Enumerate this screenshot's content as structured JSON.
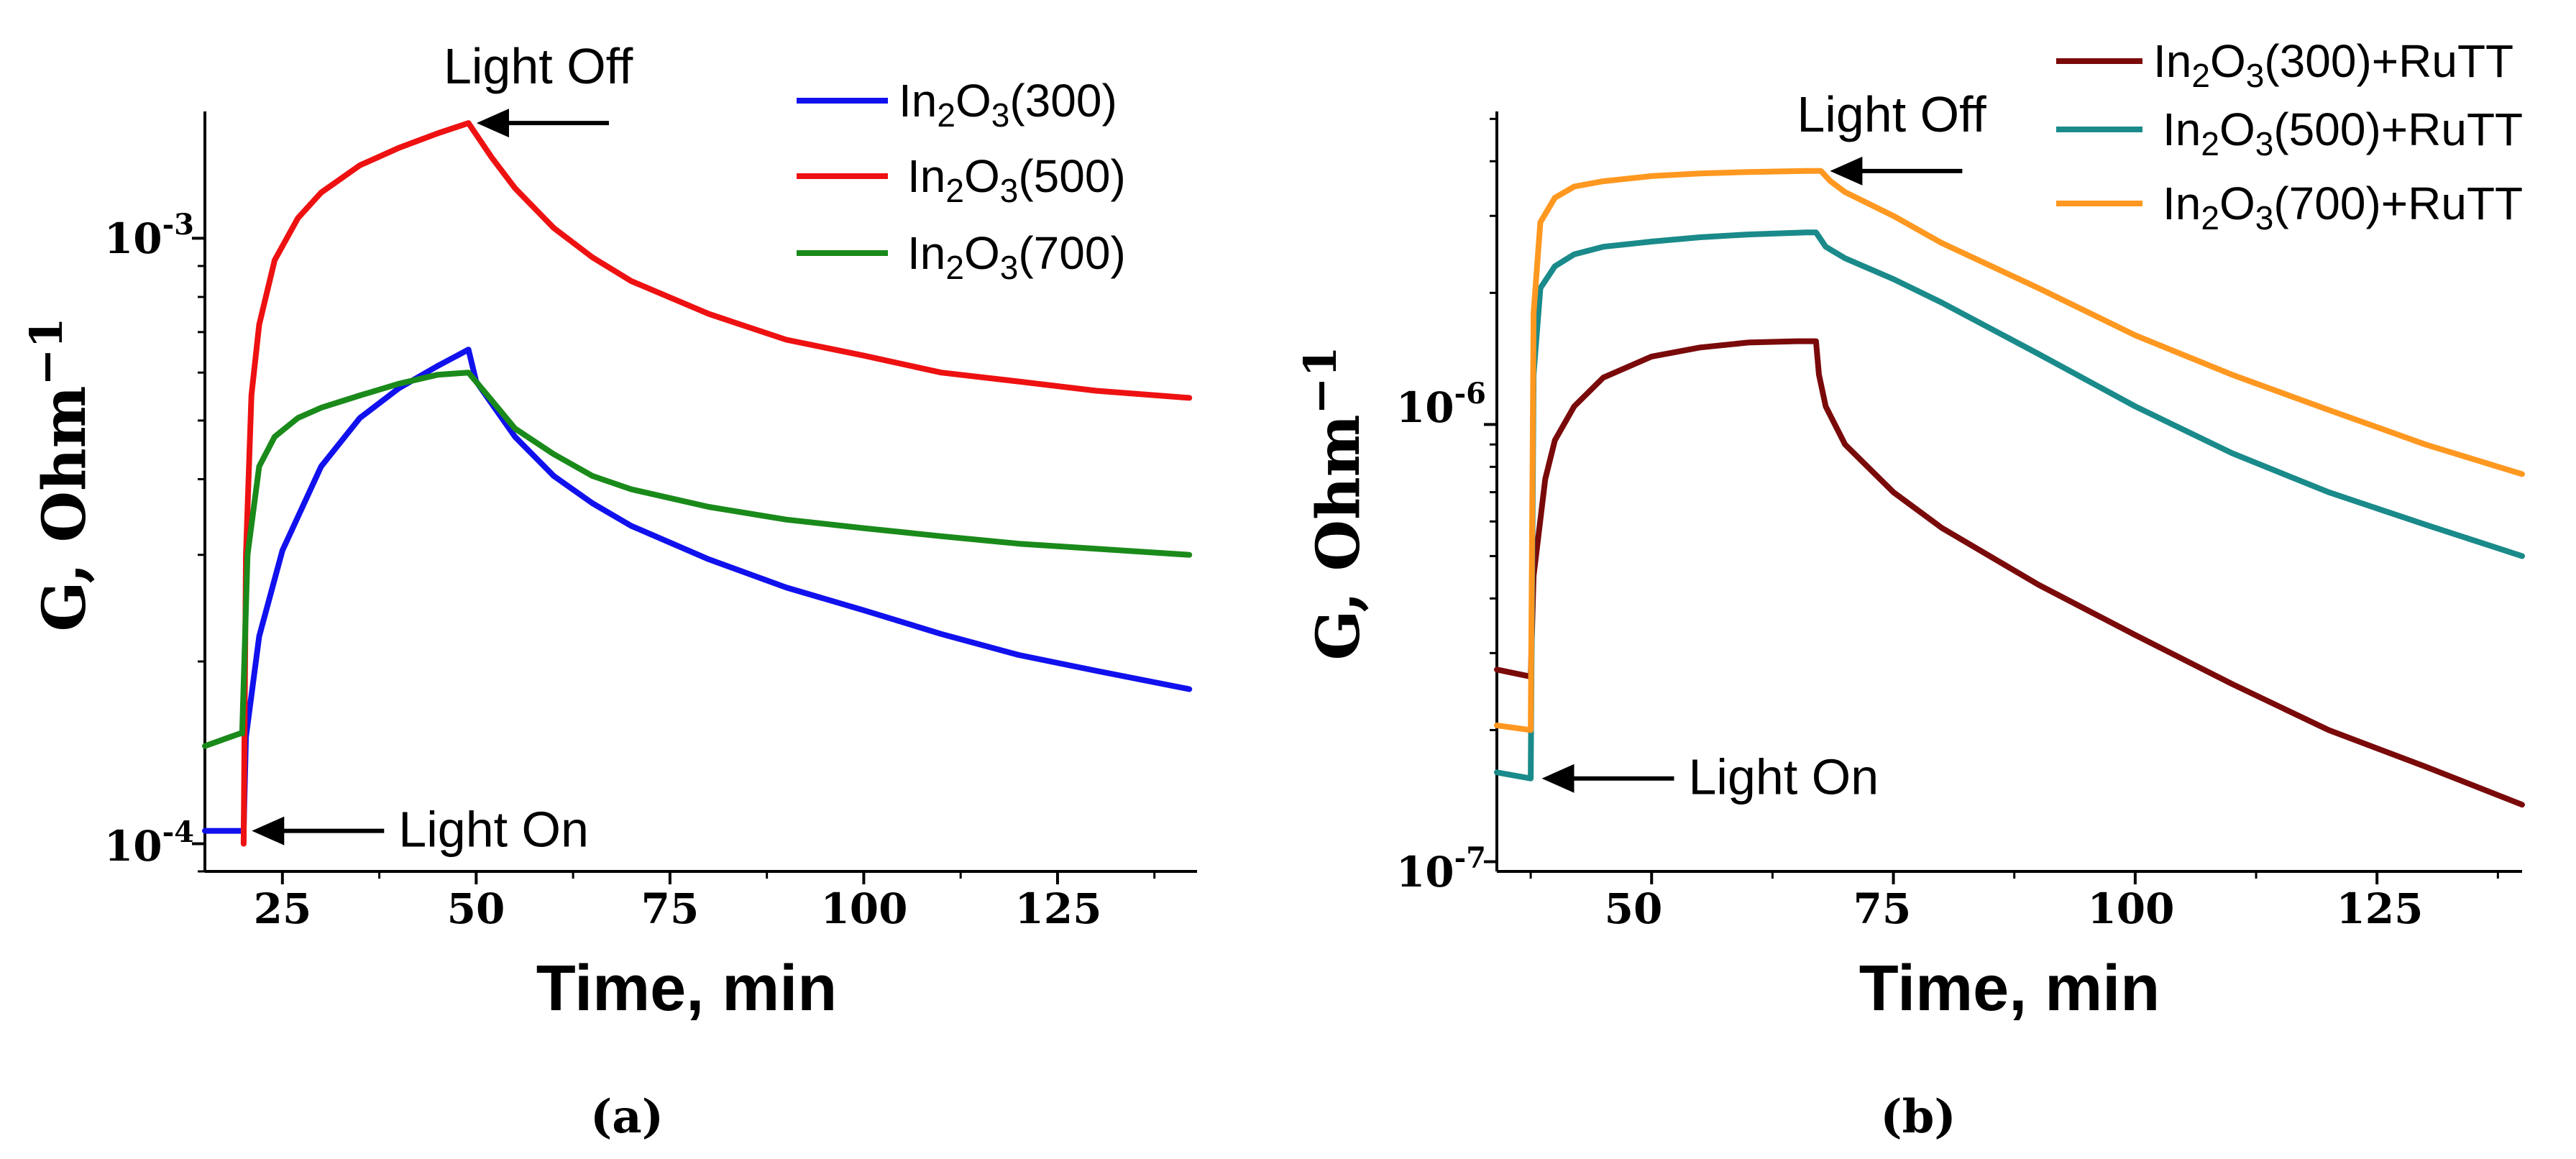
{
  "chart_data": [
    {
      "type": "line",
      "panel": "(a)",
      "xlabel": "Time, min",
      "ylabel": "G, Ohm",
      "ylabel_exp": "−1",
      "yscale": "log",
      "xlim": [
        15,
        143
      ],
      "ylim": [
        9e-05,
        0.00162
      ],
      "xticks": [
        {
          "value": 25,
          "label": "25"
        },
        {
          "value": 50,
          "label": "50"
        },
        {
          "value": 75,
          "label": "75"
        },
        {
          "value": 100,
          "label": "100"
        },
        {
          "value": 125,
          "label": "125"
        }
      ],
      "yticks": [
        {
          "value": 0.0001,
          "base": "10",
          "exp": "-4"
        },
        {
          "value": 0.001,
          "base": "10",
          "exp": "-3"
        }
      ],
      "legend": {
        "position": "top-right"
      },
      "series": [
        {
          "name": "In2O3(300)",
          "label_parts": {
            "a": "In",
            "s1": "2",
            "b": "O",
            "s2": "3",
            "c": "(300)"
          },
          "color": "#1111ee",
          "x": [
            15,
            20,
            20.3,
            22,
            25,
            30,
            35,
            40,
            45,
            49,
            50,
            55,
            60,
            65,
            70,
            80,
            90,
            100,
            110,
            120,
            130,
            142
          ],
          "y": [
            0.000105,
            0.000105,
            0.00015,
            0.00022,
            0.000305,
            0.00042,
            0.000505,
            0.000565,
            0.000615,
            0.000655,
            0.00058,
            0.00047,
            0.000405,
            0.000365,
            0.000335,
            0.000295,
            0.000265,
            0.000243,
            0.000222,
            0.000205,
            0.000193,
            0.00018
          ]
        },
        {
          "name": "In2O3(500)",
          "label_parts": {
            "a": "In",
            "s1": "2",
            "b": "O",
            "s2": "3",
            "c": "(500)"
          },
          "color": "#ee1111",
          "x": [
            20,
            20.3,
            21,
            22,
            24,
            27,
            30,
            35,
            40,
            45,
            49,
            52,
            55,
            60,
            65,
            70,
            80,
            90,
            100,
            110,
            120,
            130,
            142
          ],
          "y": [
            0.0001,
            0.0003,
            0.00055,
            0.00072,
            0.00092,
            0.00108,
            0.00119,
            0.00132,
            0.00141,
            0.00149,
            0.00155,
            0.00136,
            0.00121,
            0.00104,
            0.00093,
            0.00085,
            0.00075,
            0.00068,
            0.00064,
            0.0006,
            0.00058,
            0.00056,
            0.000545
          ]
        },
        {
          "name": "In2O3(700)",
          "label_parts": {
            "a": "In",
            "s1": "2",
            "b": "O",
            "s2": "3",
            "c": "(700)"
          },
          "color": "#1a8a1a",
          "x": [
            15,
            19.5,
            19.8,
            20.5,
            22,
            24,
            27,
            30,
            35,
            40,
            45,
            49,
            52,
            55,
            60,
            65,
            70,
            80,
            90,
            100,
            110,
            120,
            130,
            142
          ],
          "y": [
            0.000145,
            0.000152,
            0.000152,
            0.0003,
            0.00042,
            0.00047,
            0.000505,
            0.000525,
            0.00055,
            0.000575,
            0.000595,
            0.0006,
            0.00054,
            0.000485,
            0.00044,
            0.000405,
            0.000385,
            0.00036,
            0.000343,
            0.000332,
            0.000322,
            0.000313,
            0.000307,
            0.0003
          ]
        }
      ],
      "annotations": [
        {
          "text": "Light Off",
          "x": 49.5,
          "y": 0.00155,
          "side": "right",
          "text_above": true
        },
        {
          "text": "Light On",
          "x": 20.5,
          "y": 0.000105,
          "side": "right",
          "text_above": false
        }
      ]
    },
    {
      "type": "line",
      "panel": "(b)",
      "xlabel": "Time, min",
      "ylabel": "G, Ohm",
      "ylabel_exp": "−1",
      "yscale": "log",
      "xlim": [
        34,
        140
      ],
      "ylim": [
        9.5e-08,
        5.2e-06
      ],
      "xticks": [
        {
          "value": 50,
          "label": "50"
        },
        {
          "value": 75,
          "label": "75"
        },
        {
          "value": 100,
          "label": "100"
        },
        {
          "value": 125,
          "label": "125"
        }
      ],
      "yticks": [
        {
          "value": 1e-07,
          "base": "10",
          "exp": "-7"
        },
        {
          "value": 1e-06,
          "base": "10",
          "exp": "-6"
        }
      ],
      "legend": {
        "position": "top-right"
      },
      "series": [
        {
          "name": "In2O3(300)+RuTT",
          "label_parts": {
            "a": "In",
            "s1": "2",
            "b": "O",
            "s2": "3",
            "c": "(300)+RuTT"
          },
          "color": "#7a0a0a",
          "x": [
            34,
            37.5,
            37.8,
            39,
            40,
            42,
            45,
            50,
            55,
            60,
            65,
            67,
            67.3,
            68,
            70,
            75,
            80,
            90,
            100,
            110,
            120,
            130,
            140
          ],
          "y": [
            2.75e-07,
            2.65e-07,
            4.5e-07,
            7.5e-07,
            9.2e-07,
            1.1e-06,
            1.28e-06,
            1.43e-06,
            1.5e-06,
            1.54e-06,
            1.55e-06,
            1.55e-06,
            1.3e-06,
            1.1e-06,
            9e-07,
            7e-07,
            5.8e-07,
            4.3e-07,
            3.3e-07,
            2.55e-07,
            2e-07,
            1.65e-07,
            1.35e-07
          ]
        },
        {
          "name": "In2O3(500)+RuTT",
          "label_parts": {
            "a": "In",
            "s1": "2",
            "b": "O",
            "s2": "3",
            "c": "(500)+RuTT"
          },
          "color": "#1a8a8a",
          "x": [
            34,
            37.5,
            37.8,
            38.5,
            40,
            42,
            45,
            50,
            55,
            60,
            66,
            67,
            68,
            70,
            75,
            80,
            90,
            100,
            110,
            120,
            130,
            140
          ],
          "y": [
            1.6e-07,
            1.55e-07,
            1.3e-06,
            2.05e-06,
            2.3e-06,
            2.45e-06,
            2.55e-06,
            2.62e-06,
            2.68e-06,
            2.72e-06,
            2.75e-06,
            2.75e-06,
            2.55e-06,
            2.4e-06,
            2.15e-06,
            1.9e-06,
            1.45e-06,
            1.1e-06,
            8.6e-07,
            7e-07,
            5.9e-07,
            5e-07
          ]
        },
        {
          "name": "In2O3(700)+RuTT",
          "label_parts": {
            "a": "In",
            "s1": "2",
            "b": "O",
            "s2": "3",
            "c": "(700)+RuTT"
          },
          "color": "#ff9820",
          "x": [
            34,
            37.5,
            37.8,
            38.5,
            40,
            42,
            45,
            50,
            55,
            60,
            66,
            67.5,
            68.5,
            70,
            75,
            80,
            90,
            100,
            110,
            120,
            130,
            140
          ],
          "y": [
            2.05e-07,
            2e-07,
            1.8e-06,
            2.9e-06,
            3.3e-06,
            3.5e-06,
            3.6e-06,
            3.7e-06,
            3.75e-06,
            3.78e-06,
            3.8e-06,
            3.8e-06,
            3.6e-06,
            3.4e-06,
            3e-06,
            2.6e-06,
            2.05e-06,
            1.6e-06,
            1.3e-06,
            1.08e-06,
            9e-07,
            7.7e-07
          ]
        }
      ],
      "annotations": [
        {
          "text": "Light Off",
          "x": 68,
          "y": 3.8e-06,
          "side": "right",
          "text_above": true
        },
        {
          "text": "Light On",
          "x": 38.2,
          "y": 1.55e-07,
          "side": "right",
          "text_above": false
        }
      ]
    }
  ]
}
